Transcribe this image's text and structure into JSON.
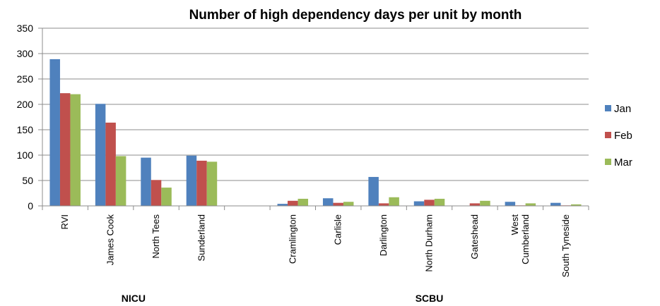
{
  "chart_data": {
    "type": "bar",
    "title": "Number of high dependency days per unit by month",
    "xlabel": "",
    "ylabel": "",
    "ylim": [
      0,
      350
    ],
    "yticks": [
      0,
      50,
      100,
      150,
      200,
      250,
      300,
      350
    ],
    "grid": true,
    "legend_position": "right",
    "categories": [
      "RVI",
      "James Cook",
      "North Tees",
      "Sunderland",
      "",
      "Cramlington",
      "Carlisle",
      "Darlington",
      "North Durham",
      "Gateshead",
      "West\nCumberland",
      "South Tyneside"
    ],
    "category_groups": [
      {
        "label": "NICU",
        "from": 0,
        "to": 3
      },
      {
        "label": "SCBU",
        "from": 5,
        "to": 11
      }
    ],
    "series": [
      {
        "name": "Jan",
        "color": "#4f81bd",
        "values": [
          289,
          201,
          95,
          99,
          0,
          4,
          15,
          57,
          9,
          0,
          8,
          6
        ]
      },
      {
        "name": "Feb",
        "color": "#c0504d",
        "values": [
          222,
          164,
          51,
          89,
          0,
          10,
          6,
          5,
          12,
          5,
          1,
          1
        ]
      },
      {
        "name": "Mar",
        "color": "#9bbb59",
        "values": [
          220,
          98,
          36,
          87,
          0,
          14,
          8,
          17,
          14,
          10,
          5,
          3
        ]
      }
    ]
  }
}
